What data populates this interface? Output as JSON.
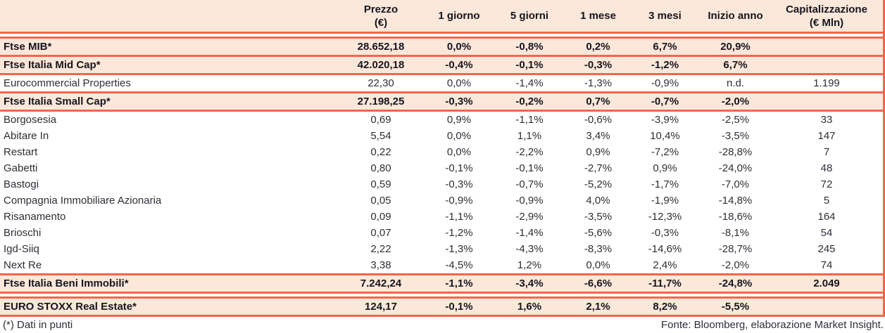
{
  "colors": {
    "accent_line": "#f2664c",
    "band_background": "#fce8da",
    "text_strong": "#15151e",
    "text_regular": "#2e2e38"
  },
  "table": {
    "columns": [
      {
        "label": "Prezzo",
        "sublabel": "(€)"
      },
      {
        "label": "1 giorno",
        "sublabel": ""
      },
      {
        "label": "5 giorni",
        "sublabel": ""
      },
      {
        "label": "1 mese",
        "sublabel": ""
      },
      {
        "label": "3 mesi",
        "sublabel": ""
      },
      {
        "label": "Inizio anno",
        "sublabel": ""
      },
      {
        "label": "Capitalizzazione",
        "sublabel": "(€ Mln)"
      }
    ],
    "rows": [
      {
        "name": "Ftse MIB*",
        "values": [
          "28.652,18",
          "0,0%",
          "-0,8%",
          "0,2%",
          "6,7%",
          "20,9%",
          ""
        ],
        "emphasis": true,
        "divider_after": "single"
      },
      {
        "name": "Ftse Italia Mid Cap*",
        "values": [
          "42.020,18",
          "-0,4%",
          "-0,1%",
          "-0,3%",
          "-1,2%",
          "6,7%",
          ""
        ],
        "emphasis": true,
        "divider_after": "single"
      },
      {
        "name": "Eurocommercial Properties",
        "values": [
          "22,30",
          "0,0%",
          "-1,4%",
          "-1,3%",
          "-0,9%",
          "n.d.",
          "1.199"
        ],
        "emphasis": false,
        "divider_after": "single"
      },
      {
        "name": "Ftse Italia Small Cap*",
        "values": [
          "27.198,25",
          "-0,3%",
          "-0,2%",
          "0,7%",
          "-0,7%",
          "-2,0%",
          ""
        ],
        "emphasis": true,
        "divider_after": "single"
      },
      {
        "name": "Borgosesia",
        "values": [
          "0,69",
          "0,9%",
          "-1,1%",
          "-0,6%",
          "-3,9%",
          "-2,5%",
          "33"
        ],
        "emphasis": false,
        "divider_after": "none"
      },
      {
        "name": "Abitare In",
        "values": [
          "5,54",
          "0,0%",
          "1,1%",
          "3,4%",
          "10,4%",
          "-3,5%",
          "147"
        ],
        "emphasis": false,
        "divider_after": "none"
      },
      {
        "name": "Restart",
        "values": [
          "0,22",
          "0,0%",
          "-2,2%",
          "0,9%",
          "-7,2%",
          "-28,8%",
          "7"
        ],
        "emphasis": false,
        "divider_after": "none"
      },
      {
        "name": "Gabetti",
        "values": [
          "0,80",
          "-0,1%",
          "-0,1%",
          "-2,7%",
          "0,9%",
          "-24,0%",
          "48"
        ],
        "emphasis": false,
        "divider_after": "none"
      },
      {
        "name": "Bastogi",
        "values": [
          "0,59",
          "-0,3%",
          "-0,7%",
          "-5,2%",
          "-1,7%",
          "-7,0%",
          "72"
        ],
        "emphasis": false,
        "divider_after": "none"
      },
      {
        "name": "Compagnia Immobiliare Azionaria",
        "values": [
          "0,05",
          "-0,9%",
          "-0,9%",
          "4,0%",
          "-1,9%",
          "-14,8%",
          "5"
        ],
        "emphasis": false,
        "divider_after": "none"
      },
      {
        "name": "Risanamento",
        "values": [
          "0,09",
          "-1,1%",
          "-2,9%",
          "-3,5%",
          "-12,3%",
          "-18,6%",
          "164"
        ],
        "emphasis": false,
        "divider_after": "none"
      },
      {
        "name": "Brioschi",
        "values": [
          "0,07",
          "-1,2%",
          "-1,4%",
          "-5,6%",
          "-0,3%",
          "-8,1%",
          "54"
        ],
        "emphasis": false,
        "divider_after": "none"
      },
      {
        "name": "Igd-Siiq",
        "values": [
          "2,22",
          "-1,3%",
          "-4,3%",
          "-8,3%",
          "-14,6%",
          "-28,7%",
          "245"
        ],
        "emphasis": false,
        "divider_after": "none"
      },
      {
        "name": "Next Re",
        "values": [
          "3,38",
          "-4,5%",
          "1,2%",
          "0,0%",
          "2,4%",
          "-2,0%",
          "74"
        ],
        "emphasis": false,
        "divider_after": "single"
      },
      {
        "name": "Ftse Italia Beni Immobili*",
        "values": [
          "7.242,24",
          "-1,1%",
          "-3,4%",
          "-6,6%",
          "-11,7%",
          "-24,8%",
          "2.049"
        ],
        "emphasis": true,
        "divider_after": "double"
      },
      {
        "name": "EURO STOXX Real Estate*",
        "values": [
          "124,17",
          "-0,1%",
          "1,6%",
          "2,1%",
          "8,2%",
          "-5,5%",
          ""
        ],
        "emphasis": true,
        "divider_after": "single"
      }
    ]
  },
  "footer": {
    "note": "(*) Dati in punti",
    "source": "Fonte: Bloomberg, elaborazione Market Insight."
  }
}
